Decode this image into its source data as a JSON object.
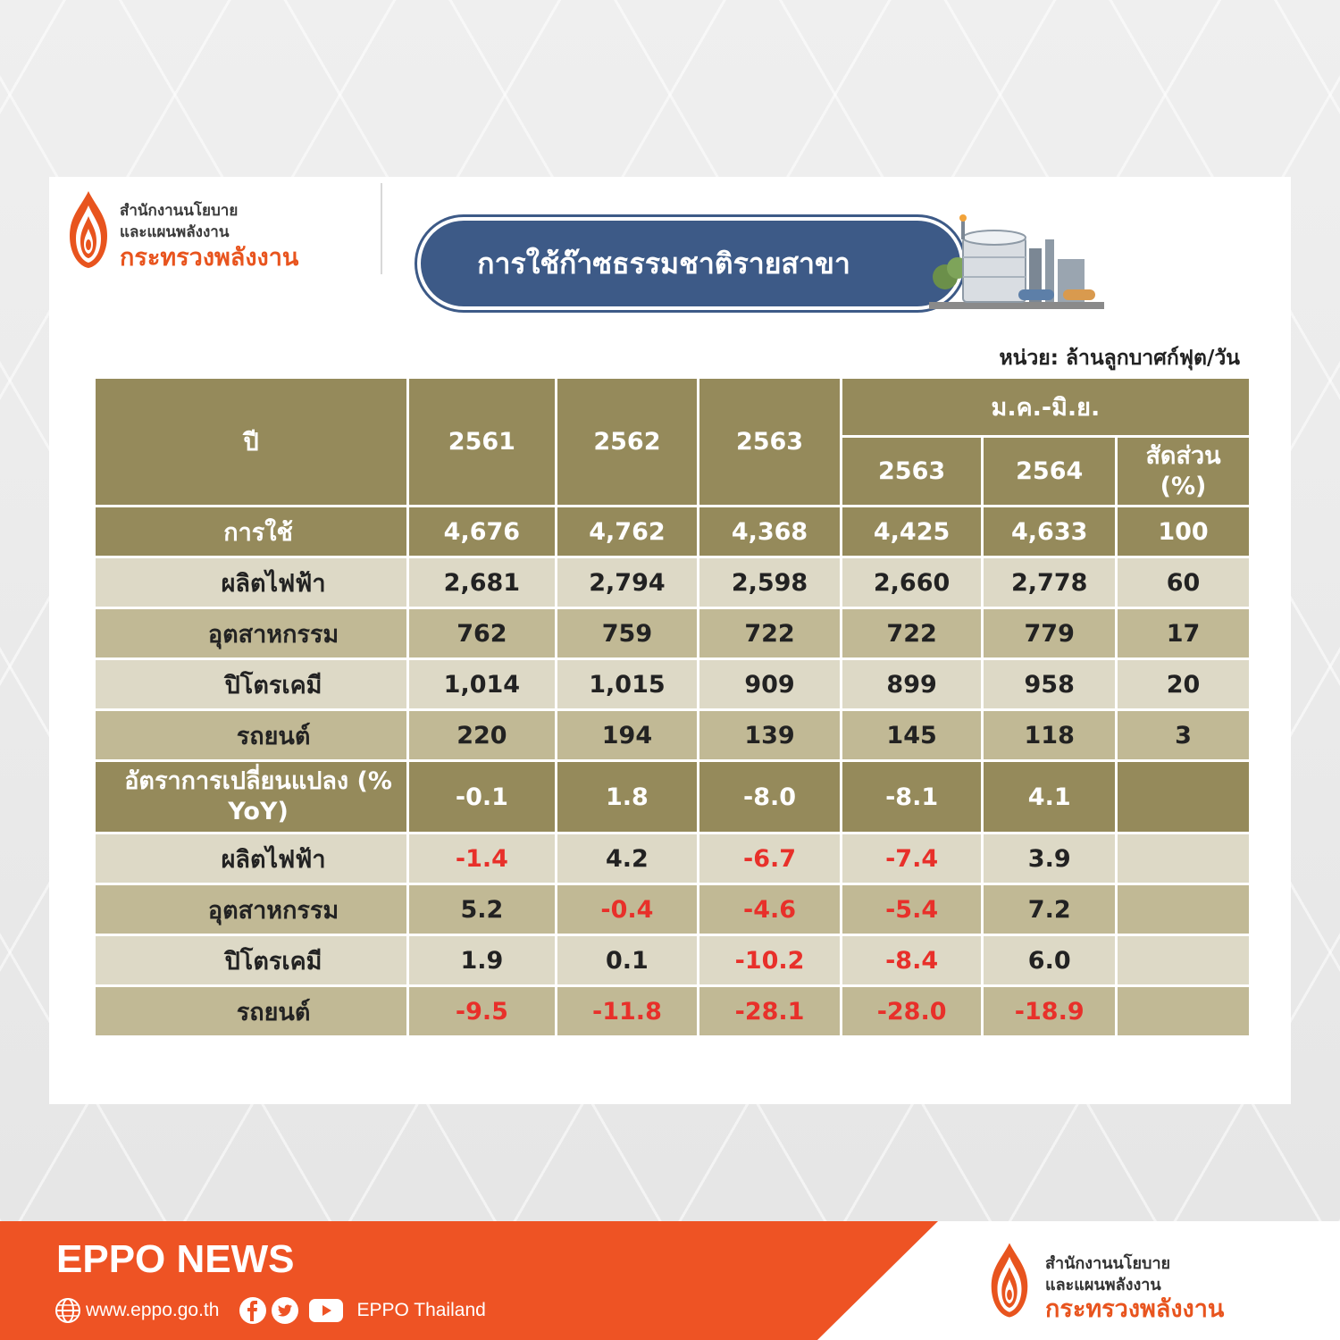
{
  "logo": {
    "line1": "สำนักงานนโยบาย",
    "line2": "และแผนพลังงาน",
    "line3": "กระทรวงพลังงาน"
  },
  "title": "การใช้ก๊าซธรรมชาติรายสาขา",
  "unit": "หน่วย: ล้านลูกบาศก์ฟุต/วัน",
  "table": {
    "header": {
      "year_label": "ปี",
      "y2561": "2561",
      "y2562": "2562",
      "y2563": "2563",
      "period": "ม.ค.-มิ.ย.",
      "p2563": "2563",
      "p2564": "2564",
      "share": "สัดส่วน (%)"
    },
    "rows": [
      {
        "label": "การใช้",
        "values": [
          "4,676",
          "4,762",
          "4,368",
          "4,425",
          "4,633",
          "100"
        ]
      },
      {
        "label": "ผลิตไฟฟ้า",
        "values": [
          "2,681",
          "2,794",
          "2,598",
          "2,660",
          "2,778",
          "60"
        ]
      },
      {
        "label": "อุตสาหกรรม",
        "values": [
          "762",
          "759",
          "722",
          "722",
          "779",
          "17"
        ]
      },
      {
        "label": "ปิโตรเคมี",
        "values": [
          "1,014",
          "1,015",
          "909",
          "899",
          "958",
          "20"
        ]
      },
      {
        "label": "รถยนต์",
        "values": [
          "220",
          "194",
          "139",
          "145",
          "118",
          "3"
        ]
      },
      {
        "label": "อัตราการเปลี่ยนแปลง (% YoY)",
        "values": [
          "-0.1",
          "1.8",
          "-8.0",
          "-8.1",
          "4.1",
          ""
        ]
      },
      {
        "label": "ผลิตไฟฟ้า",
        "values": [
          "-1.4",
          "4.2",
          "-6.7",
          "-7.4",
          "3.9",
          ""
        ]
      },
      {
        "label": "อุตสาหกรรม",
        "values": [
          "5.2",
          "-0.4",
          "-4.6",
          "-5.4",
          "7.2",
          ""
        ]
      },
      {
        "label": "ปิโตรเคมี",
        "values": [
          "1.9",
          "0.1",
          "-10.2",
          "-8.4",
          "6.0",
          ""
        ]
      },
      {
        "label": "รถยนต์",
        "values": [
          "-9.5",
          "-11.8",
          "-28.1",
          "-28.0",
          "-18.9",
          ""
        ]
      }
    ]
  },
  "footer": {
    "news_title": "EPPO NEWS",
    "website": "www.eppo.go.th",
    "social_name": "EPPO Thailand"
  },
  "colors": {
    "header_bg": "#958a5b",
    "row_light": "#ddd9c6",
    "row_dark": "#c1b995",
    "negative": "#e8302a",
    "title_bg": "#3d5a87",
    "footer_orange": "#ee5324"
  }
}
